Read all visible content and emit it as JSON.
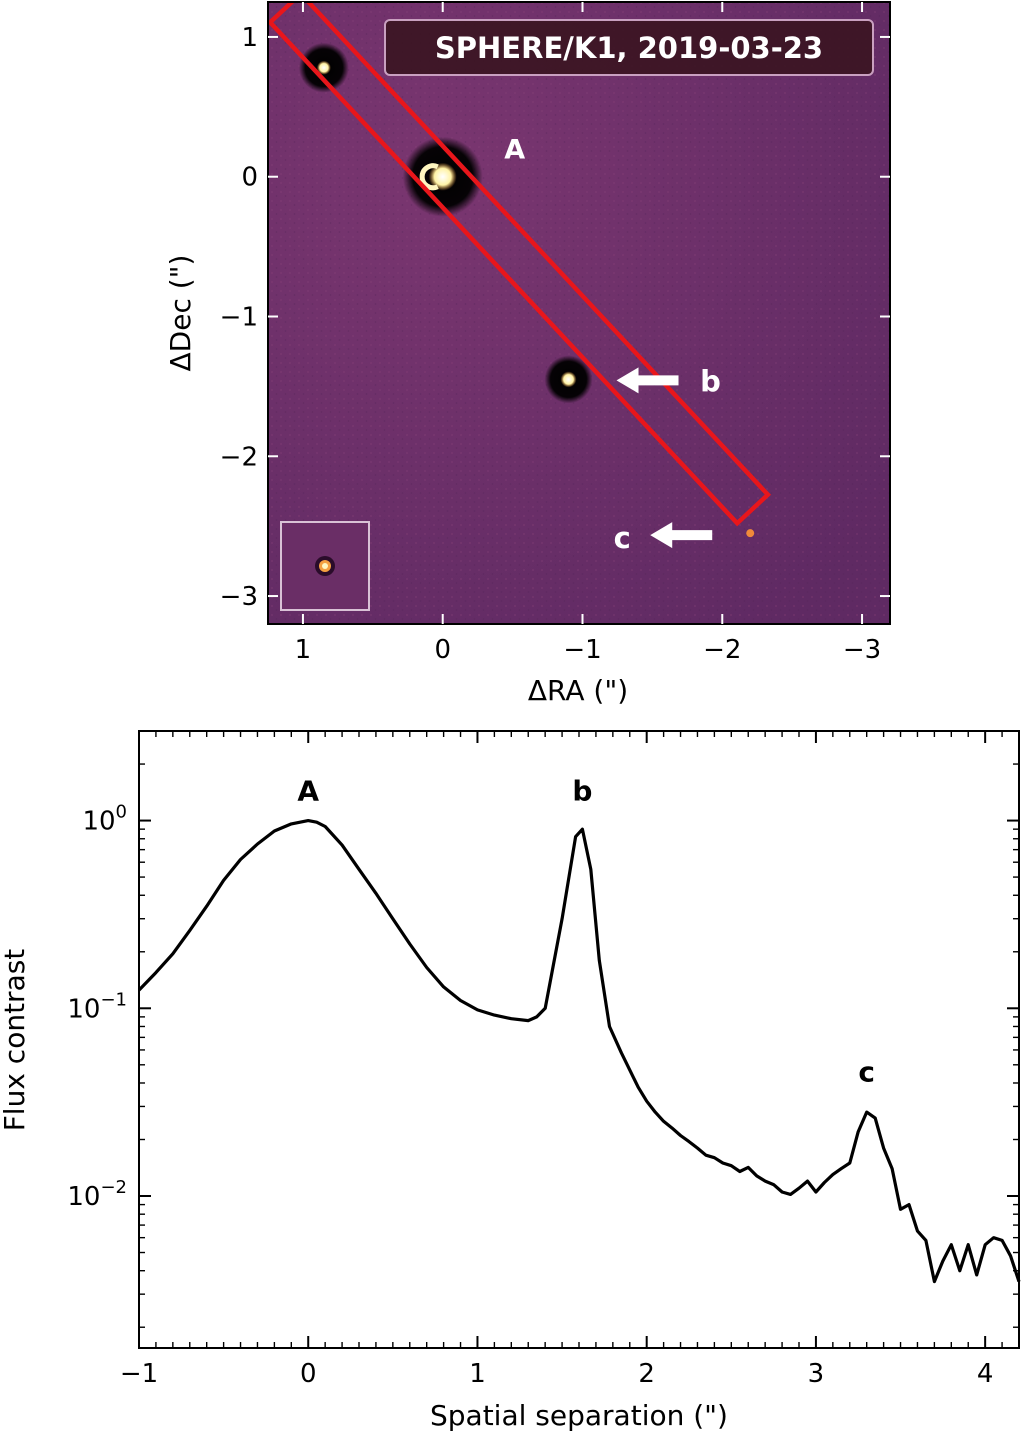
{
  "chart_data": [
    {
      "type": "image",
      "title": "SPHERE/K1, 2019-03-23",
      "xlabel": "ΔRA (\")",
      "ylabel": "ΔDec (\")",
      "xlim": [
        1.25,
        -3.2
      ],
      "ylim": [
        -3.2,
        1.25
      ],
      "xticks": [
        1,
        0,
        -1,
        -2,
        -3
      ],
      "xtick_labels": [
        "1",
        "0",
        "−1",
        "−2",
        "−3"
      ],
      "yticks": [
        1,
        0,
        -1,
        -2,
        -3
      ],
      "ytick_labels": [
        "1",
        "0",
        "−1",
        "−2",
        "−3"
      ],
      "sources": [
        {
          "name": "A",
          "dra": 0.0,
          "ddec": 0.0,
          "label": "A"
        },
        {
          "name": "b",
          "dra": -0.9,
          "ddec": -1.45,
          "label": "b"
        },
        {
          "name": "c",
          "dra": -2.2,
          "ddec": -2.55,
          "label": "c"
        },
        {
          "name": "background-star",
          "dra": 0.85,
          "ddec": 0.78,
          "label": ""
        }
      ],
      "slit_box": {
        "color": "#e8161b",
        "angle_deg": -47,
        "length_arcsec": 4.9,
        "width_arcsec": 0.3
      },
      "inset_psf": true,
      "colors": {
        "background": "#6b2f66",
        "source": "#fff3a6",
        "slit": "#e8161b"
      }
    },
    {
      "type": "line",
      "xlabel": "Spatial separation (\")",
      "ylabel": "Flux contrast",
      "yscale": "log",
      "xlim": [
        -1.0,
        4.2
      ],
      "ylim": [
        0.00155,
        3.0
      ],
      "xticks": [
        -1,
        0,
        1,
        2,
        3,
        4
      ],
      "xtick_labels": [
        "−1",
        "0",
        "1",
        "2",
        "3",
        "4"
      ],
      "yticks": [
        1.0,
        0.1,
        0.01
      ],
      "ytick_labels": [
        {
          "base": "10",
          "exp": "0"
        },
        {
          "base": "10",
          "exp": "−1"
        },
        {
          "base": "10",
          "exp": "−2"
        }
      ],
      "annotations": [
        {
          "text": "A",
          "x": 0.0,
          "y": 1.45
        },
        {
          "text": "b",
          "x": 1.62,
          "y": 1.45
        },
        {
          "text": "c",
          "x": 3.3,
          "y": 0.046
        }
      ],
      "series": [
        {
          "name": "profile",
          "color": "#000000",
          "x": [
            -1.0,
            -0.9,
            -0.8,
            -0.7,
            -0.6,
            -0.5,
            -0.4,
            -0.3,
            -0.2,
            -0.1,
            0.0,
            0.05,
            0.1,
            0.2,
            0.3,
            0.4,
            0.5,
            0.6,
            0.7,
            0.8,
            0.9,
            1.0,
            1.1,
            1.2,
            1.3,
            1.35,
            1.4,
            1.5,
            1.58,
            1.62,
            1.67,
            1.72,
            1.78,
            1.85,
            1.95,
            2.0,
            2.05,
            2.1,
            2.15,
            2.2,
            2.25,
            2.3,
            2.35,
            2.4,
            2.45,
            2.5,
            2.55,
            2.6,
            2.65,
            2.7,
            2.75,
            2.8,
            2.85,
            2.9,
            2.95,
            3.0,
            3.05,
            3.1,
            3.15,
            3.2,
            3.25,
            3.3,
            3.35,
            3.4,
            3.45,
            3.5,
            3.55,
            3.6,
            3.65,
            3.7,
            3.75,
            3.8,
            3.85,
            3.9,
            3.95,
            4.0,
            4.05,
            4.1,
            4.15,
            4.2
          ],
          "y": [
            0.125,
            0.155,
            0.195,
            0.26,
            0.35,
            0.48,
            0.62,
            0.75,
            0.88,
            0.96,
            1.0,
            0.98,
            0.93,
            0.74,
            0.55,
            0.41,
            0.3,
            0.22,
            0.165,
            0.13,
            0.11,
            0.098,
            0.092,
            0.088,
            0.086,
            0.09,
            0.1,
            0.3,
            0.82,
            0.9,
            0.55,
            0.18,
            0.08,
            0.058,
            0.038,
            0.032,
            0.028,
            0.025,
            0.023,
            0.021,
            0.0195,
            0.018,
            0.0165,
            0.016,
            0.015,
            0.0145,
            0.0135,
            0.0142,
            0.0128,
            0.012,
            0.0115,
            0.0105,
            0.0102,
            0.011,
            0.012,
            0.0105,
            0.0118,
            0.013,
            0.014,
            0.015,
            0.022,
            0.028,
            0.026,
            0.018,
            0.014,
            0.0085,
            0.009,
            0.0065,
            0.0058,
            0.0035,
            0.0045,
            0.0055,
            0.004,
            0.0055,
            0.0038,
            0.0055,
            0.006,
            0.0058,
            0.0048,
            0.0035
          ]
        }
      ]
    }
  ]
}
